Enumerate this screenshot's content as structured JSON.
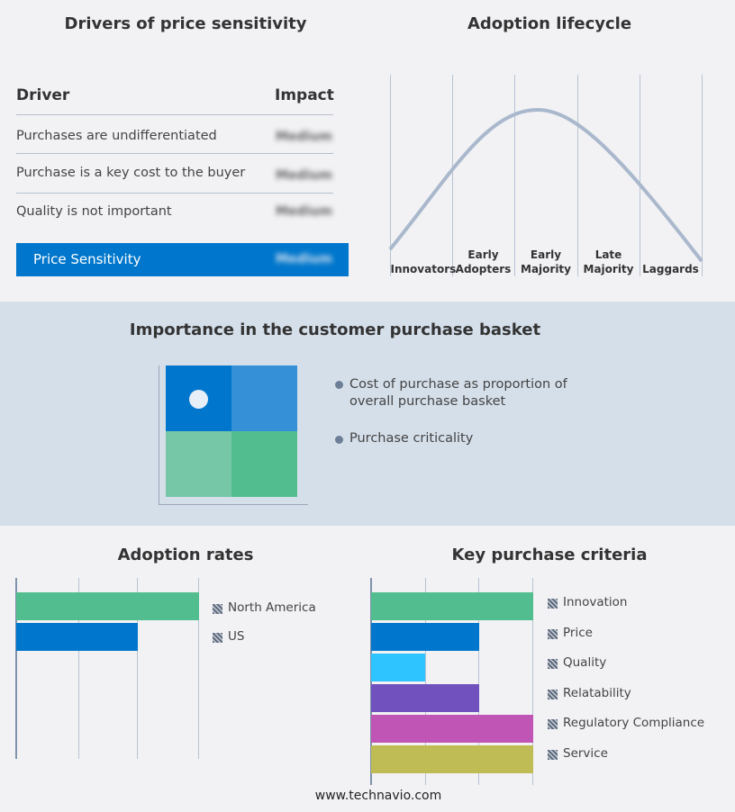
{
  "drivers": {
    "title": "Drivers of price sensitivity",
    "header": {
      "driver": "Driver",
      "impact": "Impact"
    },
    "rows": [
      {
        "driver": "Purchases are undifferentiated",
        "impact": "Medium"
      },
      {
        "driver": "Purchase is a key cost to the buyer",
        "impact": "Medium"
      },
      {
        "driver": "Quality is not important",
        "impact": "Medium"
      }
    ],
    "summary": {
      "label": "Price Sensitivity",
      "impact": "Medium"
    },
    "accent": "#0077cc"
  },
  "lifecycle": {
    "title": "Adoption lifecycle",
    "stages": [
      [
        "Innovators"
      ],
      [
        "Early",
        "Adopters"
      ],
      [
        "Early",
        "Majority"
      ],
      [
        "Late",
        "Majority"
      ],
      [
        "Laggards"
      ]
    ],
    "curve_color": "#a9b8cc"
  },
  "basket": {
    "title": "Importance in the customer purchase basket",
    "legend": [
      "Cost of purchase as proportion of overall purchase basket",
      "Purchase criticality"
    ],
    "quadrant_colors": [
      "#0077cc",
      "#3590d8",
      "#76c7a8",
      "#52be8f"
    ]
  },
  "chart_data": [
    {
      "type": "bar",
      "title": "Adoption rates",
      "orientation": "horizontal",
      "categories": [
        "North America",
        "US"
      ],
      "values": [
        3,
        2
      ],
      "xlim": [
        0,
        3
      ],
      "grid": true,
      "legend": "right",
      "colors": [
        "#52be8f",
        "#0077cc"
      ]
    },
    {
      "type": "bar",
      "title": "Key purchase criteria",
      "orientation": "horizontal",
      "categories": [
        "Innovation",
        "Price",
        "Quality",
        "Relatability",
        "Regulatory Compliance",
        "Service"
      ],
      "values": [
        3,
        2,
        1,
        2,
        3,
        3
      ],
      "xlim": [
        0,
        3
      ],
      "grid": true,
      "legend": "right",
      "colors": [
        "#52be8f",
        "#0077cc",
        "#2ec4ff",
        "#7051bd",
        "#c055b5",
        "#bfbb55"
      ]
    }
  ],
  "footer": "www.technavio.com"
}
